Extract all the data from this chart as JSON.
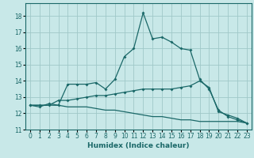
{
  "title": "",
  "xlabel": "Humidex (Indice chaleur)",
  "xlim": [
    -0.5,
    23.5
  ],
  "ylim": [
    11,
    18.8
  ],
  "yticks": [
    11,
    12,
    13,
    14,
    15,
    16,
    17,
    18
  ],
  "xticks": [
    0,
    1,
    2,
    3,
    4,
    5,
    6,
    7,
    8,
    9,
    10,
    11,
    12,
    13,
    14,
    15,
    16,
    17,
    18,
    19,
    20,
    21,
    22,
    23
  ],
  "background_color": "#c8e8e8",
  "grid_color": "#a0c8c8",
  "line_color": "#1a6868",
  "line1_x": [
    0,
    1,
    2,
    3,
    4,
    5,
    6,
    7,
    8,
    9,
    10,
    11,
    12,
    13,
    14,
    15,
    16,
    17,
    18,
    19,
    20,
    21,
    22,
    23
  ],
  "line1_y": [
    12.5,
    12.4,
    12.6,
    12.5,
    13.8,
    13.8,
    13.8,
    13.9,
    13.5,
    14.1,
    15.5,
    16.0,
    18.2,
    16.6,
    16.7,
    16.4,
    16.0,
    15.9,
    14.1,
    13.5,
    12.2,
    11.8,
    11.6,
    11.4
  ],
  "line2_x": [
    0,
    1,
    2,
    3,
    4,
    5,
    6,
    7,
    8,
    9,
    10,
    11,
    12,
    13,
    14,
    15,
    16,
    17,
    18,
    19,
    20,
    21,
    22,
    23
  ],
  "line2_y": [
    12.5,
    12.5,
    12.5,
    12.8,
    12.8,
    12.9,
    13.0,
    13.1,
    13.1,
    13.2,
    13.3,
    13.4,
    13.5,
    13.5,
    13.5,
    13.5,
    13.6,
    13.7,
    14.0,
    13.6,
    12.1,
    11.9,
    11.7,
    11.4
  ],
  "line3_x": [
    0,
    1,
    2,
    3,
    4,
    5,
    6,
    7,
    8,
    9,
    10,
    11,
    12,
    13,
    14,
    15,
    16,
    17,
    18,
    19,
    20,
    21,
    22,
    23
  ],
  "line3_y": [
    12.5,
    12.5,
    12.5,
    12.5,
    12.4,
    12.4,
    12.4,
    12.3,
    12.2,
    12.2,
    12.1,
    12.0,
    11.9,
    11.8,
    11.8,
    11.7,
    11.6,
    11.6,
    11.5,
    11.5,
    11.5,
    11.5,
    11.5,
    11.4
  ],
  "tick_fontsize": 5.5,
  "xlabel_fontsize": 6.5
}
